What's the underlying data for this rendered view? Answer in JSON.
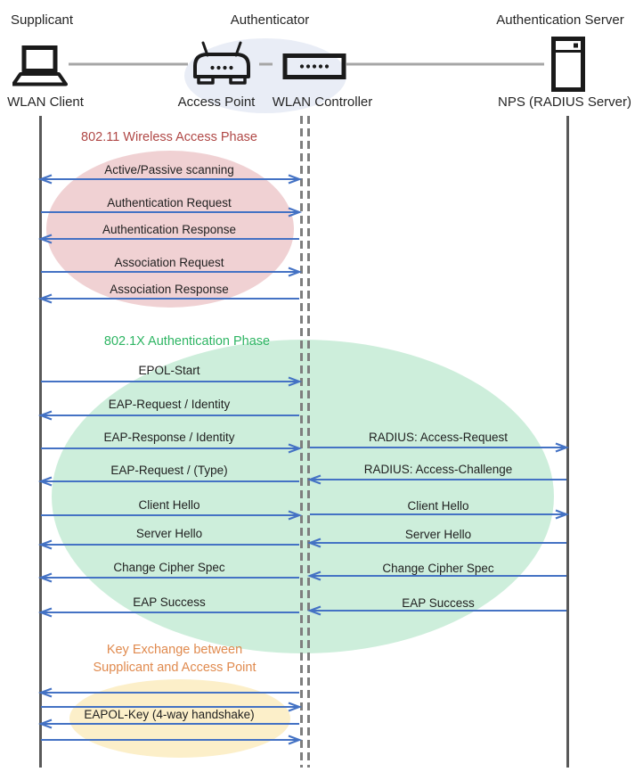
{
  "header": {
    "roles": {
      "supplicant": "Supplicant",
      "authenticator": "Authenticator",
      "auth_server": "Authentication Server"
    },
    "devices": {
      "wlan_client": "WLAN Client",
      "access_point": "Access Point",
      "wlan_controller": "WLAN Controller",
      "nps": "NPS (RADIUS Server)"
    },
    "group_color": "#E9EDF6"
  },
  "phases": {
    "phase1": {
      "title": "802.11 Wireless Access Phase",
      "color": "#B04846",
      "bubble_color": "#F0D1D3"
    },
    "phase2": {
      "title": "802.1X Authentication Phase",
      "color": "#2EB563",
      "bubble_color": "#CDEEDB"
    },
    "phase3": {
      "title_line1": "Key Exchange between",
      "title_line2": "Supplicant and Access Point",
      "color": "#E08A4E",
      "bubble_color": "#FCEFC9"
    }
  },
  "messages": [
    {
      "label": "Active/Passive scanning",
      "channel": "client-controller",
      "direction": "both"
    },
    {
      "label": "Authentication Request",
      "channel": "client-controller",
      "direction": "right"
    },
    {
      "label": "Authentication Response",
      "channel": "client-controller",
      "direction": "left"
    },
    {
      "label": "Association Request",
      "channel": "client-controller",
      "direction": "right"
    },
    {
      "label": "Association Response",
      "channel": "client-controller",
      "direction": "left"
    },
    {
      "label": "EPOL-Start",
      "channel": "client-controller",
      "direction": "right"
    },
    {
      "label": "EAP-Request / Identity",
      "channel": "client-controller",
      "direction": "left"
    },
    {
      "label": "EAP-Response / Identity",
      "channel": "client-controller",
      "direction": "right"
    },
    {
      "label": "RADIUS: Access-Request",
      "channel": "controller-server",
      "direction": "right"
    },
    {
      "label": "EAP-Request / (Type)",
      "channel": "client-controller",
      "direction": "left"
    },
    {
      "label": "RADIUS: Access-Challenge",
      "channel": "controller-server",
      "direction": "left"
    },
    {
      "label": "Client Hello",
      "channel": "client-controller",
      "direction": "right"
    },
    {
      "label": "Client Hello",
      "channel": "controller-server",
      "direction": "right"
    },
    {
      "label": "Server Hello",
      "channel": "client-controller",
      "direction": "left"
    },
    {
      "label": "Server Hello",
      "channel": "controller-server",
      "direction": "left"
    },
    {
      "label": "Change Cipher Spec",
      "channel": "client-controller",
      "direction": "left"
    },
    {
      "label": "Change Cipher Spec",
      "channel": "controller-server",
      "direction": "left"
    },
    {
      "label": "EAP Success",
      "channel": "client-controller",
      "direction": "left"
    },
    {
      "label": "EAP Success",
      "channel": "controller-server",
      "direction": "left"
    },
    {
      "label": "",
      "channel": "client-controller",
      "direction": "left"
    },
    {
      "label": "",
      "channel": "client-controller",
      "direction": "right"
    },
    {
      "label": "EAPOL-Key (4-way handshake)",
      "channel": "client-controller",
      "direction": "left"
    },
    {
      "label": "",
      "channel": "client-controller",
      "direction": "right"
    }
  ],
  "colors": {
    "arrow": "#4472C4",
    "lifeline": "#595959",
    "lifeline_dashed": "#7F7F7F",
    "connector": "#A6A6A6",
    "icon": "#1a1a1a"
  }
}
